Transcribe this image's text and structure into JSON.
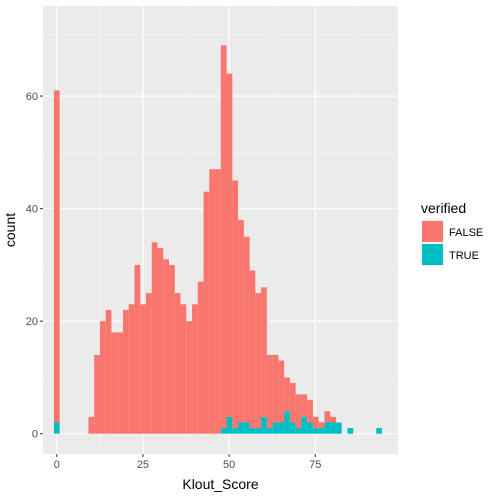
{
  "chart_data": {
    "type": "bar",
    "stacked": true,
    "xlabel": "Klout_Score",
    "ylabel": "count",
    "xlim": [
      -4,
      99
    ],
    "ylim": [
      -3.6,
      76
    ],
    "x_ticks": [
      0,
      25,
      50,
      75
    ],
    "y_ticks": [
      0,
      20,
      40,
      60
    ],
    "bin_width": 1.67,
    "bin_starts": [
      -0.84,
      9.18,
      10.85,
      12.52,
      14.19,
      15.86,
      17.53,
      19.2,
      20.87,
      22.54,
      24.21,
      25.88,
      27.55,
      29.22,
      30.89,
      32.56,
      34.23,
      35.9,
      37.57,
      39.24,
      40.91,
      42.58,
      44.25,
      45.92,
      47.59,
      49.26,
      50.93,
      52.6,
      54.27,
      55.94,
      57.61,
      59.28,
      60.95,
      62.62,
      64.29,
      65.96,
      67.63,
      69.3,
      70.97,
      72.64,
      74.31,
      75.98,
      77.65,
      79.32,
      80.99,
      84.33,
      92.68
    ],
    "series": [
      {
        "name": "FALSE",
        "color": "#f8766d",
        "values": [
          59,
          3,
          14,
          20,
          22,
          18,
          18,
          22,
          23,
          30,
          23,
          25,
          34,
          33,
          31,
          30,
          25,
          23,
          20,
          23,
          27,
          43,
          47,
          47,
          68,
          61,
          44,
          36,
          33,
          28,
          24,
          23,
          13,
          12,
          11,
          6,
          7,
          6,
          4,
          4,
          2,
          1,
          2,
          1,
          0,
          0,
          0
        ]
      },
      {
        "name": "TRUE",
        "color": "#00bfc4",
        "values": [
          2,
          0,
          0,
          0,
          0,
          0,
          0,
          0,
          0,
          0,
          0,
          0,
          0,
          0,
          0,
          0,
          0,
          0,
          0,
          0,
          0,
          0,
          0,
          0,
          1,
          3,
          1,
          2,
          2,
          1,
          1,
          3,
          1,
          2,
          2,
          4,
          2,
          1,
          3,
          2,
          1,
          1,
          2,
          2,
          2,
          1,
          1
        ]
      }
    ],
    "legend": {
      "title": "verified",
      "entries": [
        "FALSE",
        "TRUE"
      ],
      "placement": "right"
    },
    "grid": true
  }
}
